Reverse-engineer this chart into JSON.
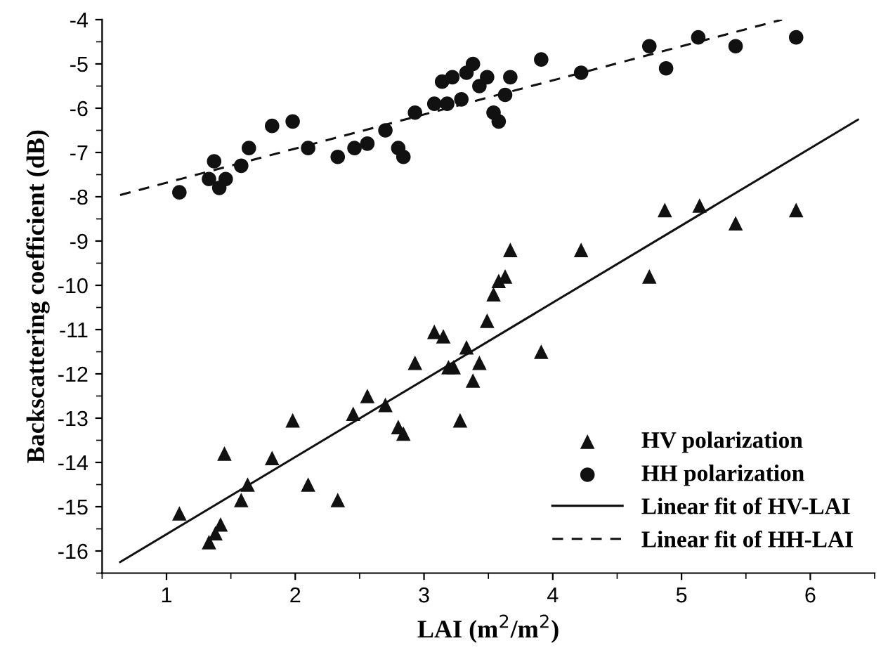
{
  "chart_data": {
    "type": "scatter",
    "xlabel": "LAI (m$^{2}$/m$^{2}$)",
    "ylabel": "Backscattering coefficient (dB)",
    "xlim": [
      0.5,
      6.5
    ],
    "ylim": [
      -16.5,
      -4
    ],
    "xticks": [
      1,
      2,
      3,
      4,
      5,
      6
    ],
    "yticks": [
      -4,
      -5,
      -6,
      -7,
      -8,
      -9,
      -10,
      -11,
      -12,
      -13,
      -14,
      -15,
      -16
    ],
    "grid": false,
    "legend": "lower right",
    "series": [
      {
        "name": "HV polarization",
        "marker": "triangle",
        "color": "#111111",
        "x": [
          4.87,
          5.14,
          5.42,
          5.89,
          3.67,
          4.22,
          4.75,
          3.54,
          3.58,
          3.63,
          3.49,
          3.08,
          3.15,
          3.33,
          2.93,
          3.19,
          3.23,
          3.43,
          3.38,
          3.91,
          2.56,
          2.7,
          2.45,
          2.8,
          2.84,
          3.28,
          1.98,
          1.45,
          1.82,
          1.63,
          2.1,
          1.58,
          2.33,
          1.1,
          1.42,
          1.38,
          1.33
        ],
        "values": [
          -8.3,
          -8.2,
          -8.6,
          -8.3,
          -9.2,
          -9.2,
          -9.8,
          -10.2,
          -9.9,
          -9.8,
          -10.8,
          -11.05,
          -11.15,
          -11.4,
          -11.75,
          -11.85,
          -11.85,
          -11.75,
          -12.15,
          -11.5,
          -12.5,
          -12.7,
          -12.9,
          -13.2,
          -13.35,
          -13.05,
          -13.05,
          -13.8,
          -13.9,
          -14.5,
          -14.5,
          -14.85,
          -14.85,
          -15.15,
          -15.4,
          -15.6,
          -15.8
        ]
      },
      {
        "name": "HH polarization",
        "marker": "circle",
        "color": "#111111",
        "x": [
          1.1,
          1.33,
          1.37,
          1.41,
          1.46,
          1.58,
          1.64,
          1.82,
          1.98,
          2.1,
          2.33,
          2.46,
          2.56,
          2.7,
          2.8,
          2.84,
          2.93,
          3.08,
          3.14,
          3.18,
          3.22,
          3.29,
          3.33,
          3.38,
          3.43,
          3.49,
          3.54,
          3.58,
          3.63,
          3.67,
          3.91,
          4.22,
          4.75,
          4.88,
          5.13,
          5.42,
          5.89
        ],
        "values": [
          -7.9,
          -7.6,
          -7.2,
          -7.8,
          -7.6,
          -7.3,
          -6.9,
          -6.4,
          -6.3,
          -6.9,
          -7.1,
          -6.9,
          -6.8,
          -6.5,
          -6.9,
          -7.1,
          -6.1,
          -5.9,
          -5.4,
          -5.9,
          -5.3,
          -5.8,
          -5.2,
          -5.0,
          -5.5,
          -5.3,
          -6.1,
          -6.3,
          -5.7,
          -5.3,
          -4.9,
          -5.2,
          -4.6,
          -5.1,
          -4.4,
          -4.6,
          -4.4
        ]
      },
      {
        "name": "Linear fit of HV-LAI",
        "type": "line",
        "line_style": "solid",
        "color": "#111111",
        "x": [
          0.64,
          6.37
        ],
        "values": [
          -16.25,
          -6.26
        ]
      },
      {
        "name": "Linear fit of HH-LAI",
        "type": "line",
        "line_style": "dashed",
        "color": "#111111",
        "x": [
          0.64,
          5.78
        ],
        "values": [
          -7.96,
          -4.0
        ]
      }
    ]
  }
}
